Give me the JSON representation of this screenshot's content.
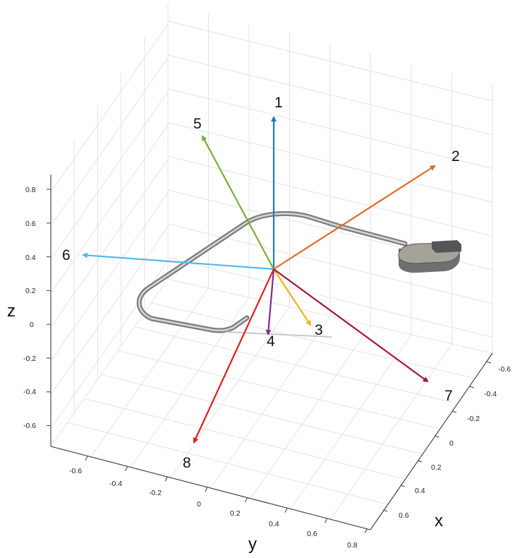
{
  "axes": {
    "x": {
      "title": "x",
      "ticks": [
        "-0.6",
        "-0.4",
        "-0.2",
        "0",
        "0.2",
        "0.4",
        "0.6"
      ]
    },
    "y": {
      "title": "y",
      "ticks": [
        "-0.6",
        "-0.4",
        "-0.2",
        "0",
        "0.2",
        "0.4",
        "0.6",
        "0.8"
      ]
    },
    "z": {
      "title": "z",
      "ticks": [
        "0.8",
        "0.6",
        "0.4",
        "0.2",
        "0",
        "-0.2",
        "-0.4",
        "-0.6"
      ]
    }
  },
  "vectors": [
    {
      "label": "1",
      "color": "#1f77c4"
    },
    {
      "label": "2",
      "color": "#e06a25"
    },
    {
      "label": "3",
      "color": "#eeb31f"
    },
    {
      "label": "4",
      "color": "#7d2e8e"
    },
    {
      "label": "5",
      "color": "#79ad32"
    },
    {
      "label": "6",
      "color": "#4db8e8"
    },
    {
      "label": "7",
      "color": "#a3192e"
    },
    {
      "label": "8",
      "color": "#e41b1b"
    }
  ],
  "device": {
    "body_color": "#8a8a8a",
    "lead_color": "#8f8f8f"
  }
}
